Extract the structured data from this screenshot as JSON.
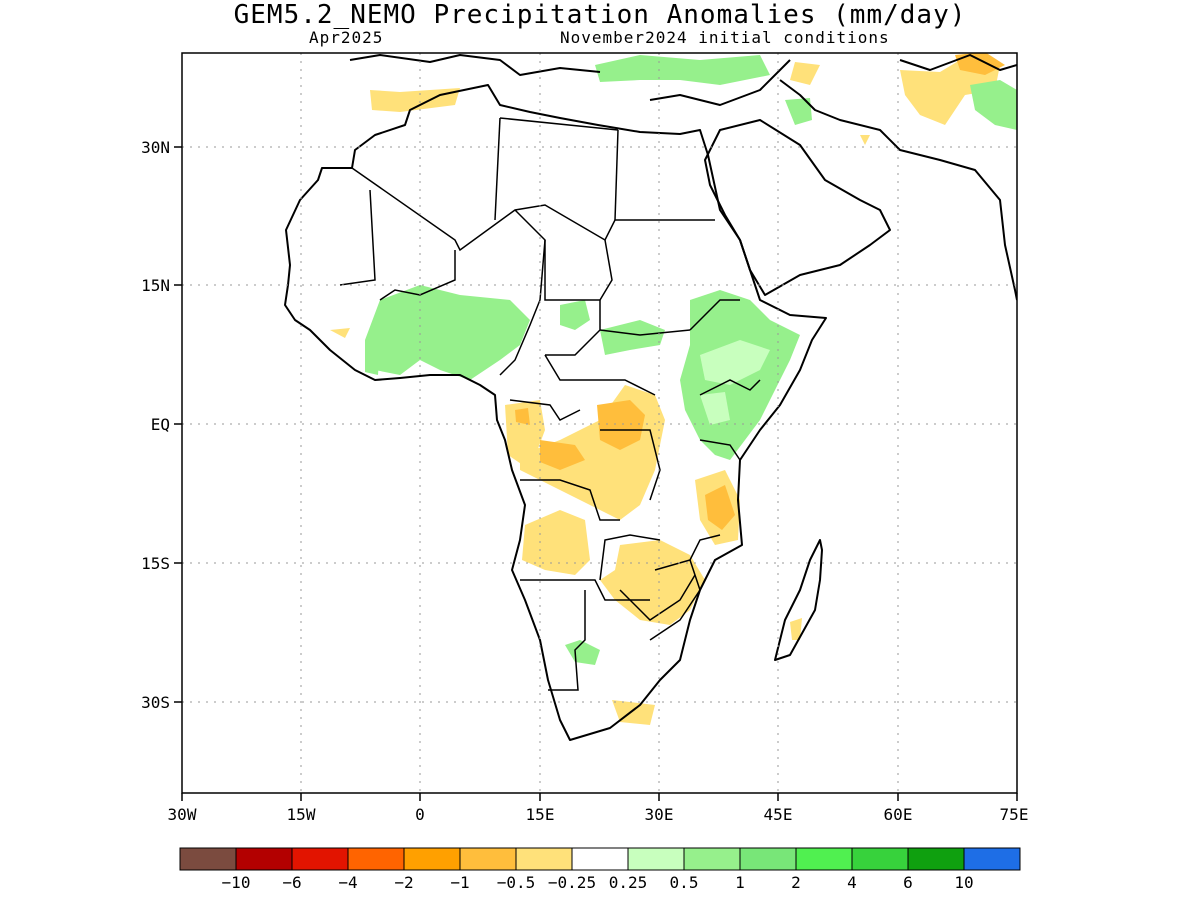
{
  "title": "GEM5.2_NEMO Precipitation Anomalies (mm/day)",
  "valid_month": "Apr2025",
  "initial_conditions": "November2024 initial conditions",
  "lat_labels": [
    "30N",
    "15N",
    "EQ",
    "15S",
    "30S"
  ],
  "lon_labels": [
    "30W",
    "15W",
    "0",
    "15E",
    "30E",
    "45E",
    "60E",
    "75E"
  ],
  "legend": {
    "colors": [
      "#7b4b3f",
      "#b30000",
      "#e21400",
      "#ff6400",
      "#ffa000",
      "#ffbe3c",
      "#ffe17a",
      "#ffffff",
      "#c8ffbe",
      "#96f08c",
      "#78e678",
      "#50f050",
      "#37d23c",
      "#0fa00f",
      "#1e6ee6"
    ],
    "labels": [
      "−10",
      "−6",
      "−4",
      "−2",
      "−1",
      "−0.5",
      "−0.25",
      "0.25",
      "0.5",
      "1",
      "2",
      "4",
      "6",
      "10"
    ]
  }
}
